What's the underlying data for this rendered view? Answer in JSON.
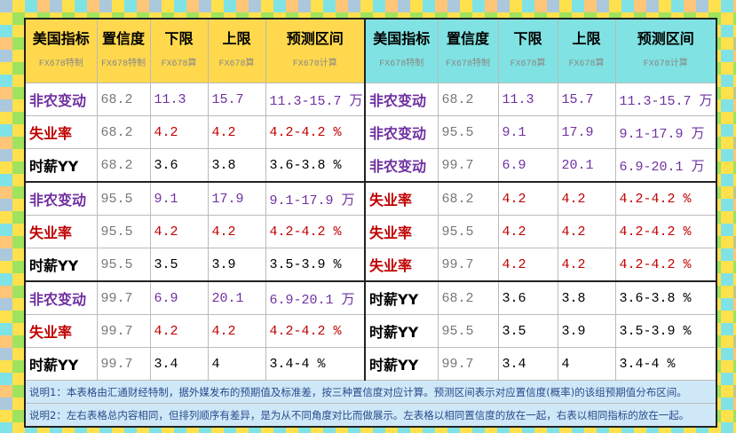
{
  "table": {
    "left": {
      "header": [
        [
          "美国指标",
          ""
        ],
        [
          "置信度",
          "FX678特制"
        ],
        [
          "下限",
          "FX678算"
        ],
        [
          "上限",
          "FX678算"
        ],
        [
          "预测区间",
          "FX678计算"
        ]
      ],
      "header_first_sub": "FX678特制",
      "rows": [
        {
          "color": "#7030a0",
          "cells": [
            "非农变动",
            "68.2",
            "11.3",
            "15.7",
            "11.3-15.7 万"
          ]
        },
        {
          "color": "#c00000",
          "cells": [
            "失业率",
            "68.2",
            "4.2",
            "4.2",
            "4.2-4.2 %"
          ]
        },
        {
          "color": "#000000",
          "cells": [
            "时薪YY",
            "68.2",
            "3.6",
            "3.8",
            "3.6-3.8 %"
          ]
        },
        {
          "color": "#7030a0",
          "cells": [
            "非农变动",
            "95.5",
            "9.1",
            "17.9",
            "9.1-17.9 万"
          ]
        },
        {
          "color": "#c00000",
          "cells": [
            "失业率",
            "95.5",
            "4.2",
            "4.2",
            "4.2-4.2 %"
          ]
        },
        {
          "color": "#000000",
          "cells": [
            "时薪YY",
            "95.5",
            "3.5",
            "3.9",
            "3.5-3.9 %"
          ]
        },
        {
          "color": "#7030a0",
          "cells": [
            "非农变动",
            "99.7",
            "6.9",
            "20.1",
            "6.9-20.1 万"
          ]
        },
        {
          "color": "#c00000",
          "cells": [
            "失业率",
            "99.7",
            "4.2",
            "4.2",
            "4.2-4.2 %"
          ]
        },
        {
          "color": "#000000",
          "cells": [
            "时薪YY",
            "99.7",
            "3.4",
            "4",
            "3.4-4 %"
          ]
        }
      ]
    },
    "right": {
      "header": [
        [
          "美国指标",
          ""
        ],
        [
          "置信度",
          "FX678特制"
        ],
        [
          "下限",
          "FX678算"
        ],
        [
          "上限",
          "FX678算"
        ],
        [
          "预测区间",
          "FX678计算"
        ]
      ],
      "header_first_sub": "FX678特制",
      "rows": [
        {
          "color": "#7030a0",
          "cells": [
            "非农变动",
            "68.2",
            "11.3",
            "15.7",
            "11.3-15.7 万"
          ]
        },
        {
          "color": "#7030a0",
          "cells": [
            "非农变动",
            "95.5",
            "9.1",
            "17.9",
            "9.1-17.9 万"
          ]
        },
        {
          "color": "#7030a0",
          "cells": [
            "非农变动",
            "99.7",
            "6.9",
            "20.1",
            "6.9-20.1 万"
          ]
        },
        {
          "color": "#c00000",
          "cells": [
            "失业率",
            "68.2",
            "4.2",
            "4.2",
            "4.2-4.2 %"
          ]
        },
        {
          "color": "#c00000",
          "cells": [
            "失业率",
            "95.5",
            "4.2",
            "4.2",
            "4.2-4.2 %"
          ]
        },
        {
          "color": "#c00000",
          "cells": [
            "失业率",
            "99.7",
            "4.2",
            "4.2",
            "4.2-4.2 %"
          ]
        },
        {
          "color": "#000000",
          "cells": [
            "时薪YY",
            "68.2",
            "3.6",
            "3.8",
            "3.6-3.8 %"
          ]
        },
        {
          "color": "#000000",
          "cells": [
            "时薪YY",
            "95.5",
            "3.5",
            "3.9",
            "3.5-3.9 %"
          ]
        },
        {
          "color": "#000000",
          "cells": [
            "时薪YY",
            "99.7",
            "3.4",
            "4",
            "3.4-4 %"
          ]
        }
      ]
    },
    "notes": [
      "说明1：本表格由汇通财经特制，据外媒发布的预期值及标准差，按三种置信度对应计算。预测区间表示对应置信度(概率)的该组预期值分布区间。",
      "说明2：左右表格总内容相同，但排列顺序有差异，是为从不同角度对比而做展示。左表格以相同置信度的放在一起，右表以相同指标的放在一起。"
    ],
    "watermark": "FX678"
  }
}
